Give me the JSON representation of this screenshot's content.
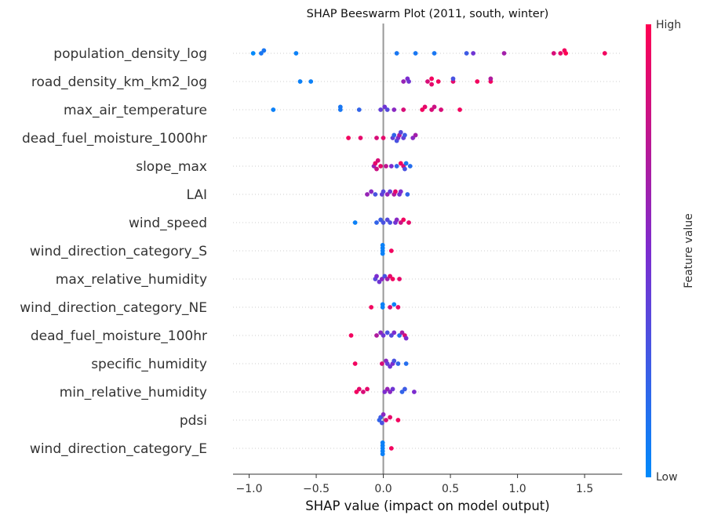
{
  "chart_data": {
    "type": "scatter",
    "subtype": "shap-beeswarm",
    "title": "SHAP Beeswarm Plot (2011, south, winter)",
    "xlabel": "SHAP value (impact on model output)",
    "xlim": [
      -1.12,
      1.78
    ],
    "xticks": [
      -1.0,
      -0.5,
      0.0,
      0.5,
      1.0,
      1.5
    ],
    "xtick_labels": [
      "−1.0",
      "−0.5",
      "0.0",
      "0.5",
      "1.0",
      "1.5"
    ],
    "colorbar": {
      "label": "Feature value",
      "high": "High",
      "low": "Low",
      "color_low": "#008afb",
      "color_mid": "#7c2ccf",
      "color_high": "#ff0052"
    },
    "grid": "row guides (dotted)",
    "zero_line_color": "#999999",
    "features": [
      {
        "name": "population_density_log",
        "points": [
          [
            -0.97,
            0.0
          ],
          [
            -0.91,
            0.1
          ],
          [
            -0.89,
            0.1
          ],
          [
            -0.65,
            0.05
          ],
          [
            0.1,
            0.1
          ],
          [
            0.24,
            0.1
          ],
          [
            0.38,
            0.1
          ],
          [
            0.62,
            0.25
          ],
          [
            0.67,
            0.45
          ],
          [
            0.9,
            0.65
          ],
          [
            1.27,
            0.85
          ],
          [
            1.32,
            0.9
          ],
          [
            1.35,
            0.95
          ],
          [
            1.36,
            1.0
          ],
          [
            1.65,
            0.95
          ]
        ]
      },
      {
        "name": "road_density_km_km2_log",
        "points": [
          [
            -0.62,
            0.05
          ],
          [
            -0.54,
            0.05
          ],
          [
            0.15,
            0.6
          ],
          [
            0.18,
            0.5
          ],
          [
            0.19,
            0.45
          ],
          [
            0.33,
            0.85
          ],
          [
            0.36,
            0.95
          ],
          [
            0.36,
            0.9
          ],
          [
            0.41,
            0.95
          ],
          [
            0.52,
            0.9
          ],
          [
            0.52,
            0.3
          ],
          [
            0.7,
            0.95
          ],
          [
            0.8,
            0.95
          ],
          [
            0.8,
            0.7
          ]
        ]
      },
      {
        "name": "max_air_temperature",
        "points": [
          [
            -0.82,
            0.05
          ],
          [
            -0.32,
            0.1
          ],
          [
            -0.32,
            0.1
          ],
          [
            -0.18,
            0.2
          ],
          [
            -0.02,
            0.4
          ],
          [
            0.01,
            0.45
          ],
          [
            0.03,
            0.35
          ],
          [
            0.08,
            0.55
          ],
          [
            0.15,
            0.85
          ],
          [
            0.29,
            0.95
          ],
          [
            0.31,
            0.9
          ],
          [
            0.36,
            0.85
          ],
          [
            0.38,
            0.8
          ],
          [
            0.43,
            0.85
          ],
          [
            0.57,
            0.95
          ]
        ]
      },
      {
        "name": "dead_fuel_moisture_1000hr",
        "points": [
          [
            -0.26,
            0.95
          ],
          [
            -0.17,
            0.9
          ],
          [
            -0.05,
            0.85
          ],
          [
            0.0,
            0.9
          ],
          [
            0.07,
            0.4
          ],
          [
            0.08,
            0.2
          ],
          [
            0.1,
            0.3
          ],
          [
            0.11,
            0.5
          ],
          [
            0.12,
            0.7
          ],
          [
            0.13,
            0.35
          ],
          [
            0.15,
            0.4
          ],
          [
            0.16,
            0.25
          ],
          [
            0.22,
            0.55
          ],
          [
            0.24,
            0.65
          ]
        ]
      },
      {
        "name": "slope_max",
        "points": [
          [
            -0.07,
            0.6
          ],
          [
            -0.06,
            0.9
          ],
          [
            -0.05,
            0.8
          ],
          [
            -0.04,
            0.85
          ],
          [
            -0.02,
            0.9
          ],
          [
            0.02,
            0.75
          ],
          [
            0.06,
            0.5
          ],
          [
            0.1,
            0.2
          ],
          [
            0.13,
            0.95
          ],
          [
            0.15,
            0.85
          ],
          [
            0.16,
            0.3
          ],
          [
            0.17,
            0.1
          ],
          [
            0.2,
            0.15
          ]
        ]
      },
      {
        "name": "LAI",
        "points": [
          [
            -0.12,
            0.6
          ],
          [
            -0.09,
            0.55
          ],
          [
            -0.06,
            0.3
          ],
          [
            -0.01,
            0.4
          ],
          [
            0.0,
            0.35
          ],
          [
            0.03,
            0.6
          ],
          [
            0.05,
            0.4
          ],
          [
            0.08,
            0.7
          ],
          [
            0.09,
            0.9
          ],
          [
            0.12,
            0.45
          ],
          [
            0.13,
            0.5
          ],
          [
            0.18,
            0.2
          ]
        ]
      },
      {
        "name": "wind_speed",
        "points": [
          [
            -0.21,
            0.05
          ],
          [
            -0.05,
            0.2
          ],
          [
            -0.02,
            0.25
          ],
          [
            0.0,
            0.3
          ],
          [
            0.03,
            0.35
          ],
          [
            0.05,
            0.3
          ],
          [
            0.09,
            0.45
          ],
          [
            0.1,
            0.55
          ],
          [
            0.13,
            0.8
          ],
          [
            0.15,
            0.95
          ],
          [
            0.19,
            0.9
          ]
        ]
      },
      {
        "name": "wind_direction_category_S",
        "points": [
          [
            -0.005,
            0.05
          ],
          [
            -0.005,
            0.05
          ],
          [
            -0.005,
            0.05
          ],
          [
            -0.005,
            0.05
          ],
          [
            0.06,
            0.95
          ]
        ]
      },
      {
        "name": "max_relative_humidity",
        "points": [
          [
            -0.06,
            0.35
          ],
          [
            -0.05,
            0.5
          ],
          [
            -0.03,
            0.45
          ],
          [
            -0.01,
            0.55
          ],
          [
            0.01,
            0.3
          ],
          [
            0.03,
            0.65
          ],
          [
            0.05,
            0.9
          ],
          [
            0.07,
            0.95
          ],
          [
            0.12,
            0.9
          ]
        ]
      },
      {
        "name": "wind_direction_category_NE",
        "points": [
          [
            -0.09,
            0.95
          ],
          [
            -0.005,
            0.05
          ],
          [
            -0.005,
            0.05
          ],
          [
            0.05,
            0.85
          ],
          [
            0.08,
            0.05
          ],
          [
            0.11,
            0.9
          ]
        ]
      },
      {
        "name": "dead_fuel_moisture_100hr",
        "points": [
          [
            -0.24,
            0.95
          ],
          [
            -0.05,
            0.7
          ],
          [
            -0.02,
            0.55
          ],
          [
            0.0,
            0.45
          ],
          [
            0.03,
            0.3
          ],
          [
            0.06,
            0.35
          ],
          [
            0.08,
            0.5
          ],
          [
            0.12,
            0.15
          ],
          [
            0.14,
            0.65
          ],
          [
            0.16,
            0.85
          ],
          [
            0.17,
            0.5
          ]
        ]
      },
      {
        "name": "specific_humidity",
        "points": [
          [
            -0.21,
            0.95
          ],
          [
            -0.01,
            0.85
          ],
          [
            0.02,
            0.55
          ],
          [
            0.03,
            0.4
          ],
          [
            0.05,
            0.45
          ],
          [
            0.07,
            0.5
          ],
          [
            0.08,
            0.3
          ],
          [
            0.11,
            0.2
          ],
          [
            0.17,
            0.15
          ]
        ]
      },
      {
        "name": "min_relative_humidity",
        "points": [
          [
            -0.2,
            0.95
          ],
          [
            -0.18,
            0.9
          ],
          [
            -0.15,
            0.85
          ],
          [
            -0.12,
            0.9
          ],
          [
            0.01,
            0.5
          ],
          [
            0.03,
            0.6
          ],
          [
            0.05,
            0.55
          ],
          [
            0.07,
            0.45
          ],
          [
            0.14,
            0.2
          ],
          [
            0.16,
            0.25
          ],
          [
            0.23,
            0.5
          ]
        ]
      },
      {
        "name": "pdsi",
        "points": [
          [
            -0.03,
            0.2
          ],
          [
            -0.02,
            0.25
          ],
          [
            -0.01,
            0.3
          ],
          [
            0.0,
            0.55
          ],
          [
            0.02,
            0.85
          ],
          [
            0.05,
            0.9
          ],
          [
            0.11,
            0.95
          ]
        ]
      },
      {
        "name": "wind_direction_category_E",
        "points": [
          [
            -0.005,
            0.05
          ],
          [
            -0.005,
            0.05
          ],
          [
            -0.005,
            0.05
          ],
          [
            -0.005,
            0.05
          ],
          [
            -0.005,
            0.05
          ],
          [
            0.06,
            0.95
          ]
        ]
      }
    ]
  }
}
